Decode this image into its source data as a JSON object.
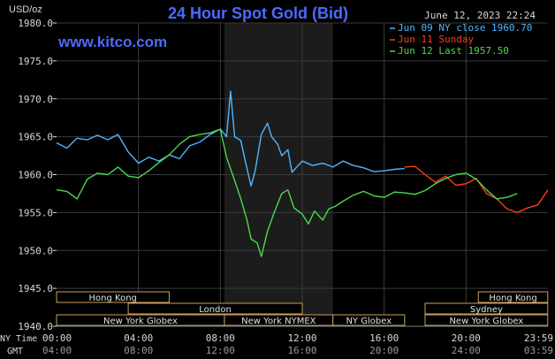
{
  "title": "24 Hour Spot Gold (Bid)",
  "unit_label": "USD/oz",
  "timestamp": "June 12, 2023 22:24",
  "watermark": "www.kitco.com",
  "colors": {
    "background": "#000000",
    "grid": "#3a3a3a",
    "title": "#4b6bff",
    "axis_text": "#d8d8d8",
    "session_band": "#1c1c1c",
    "session_box_border": "#c8a060",
    "session_text": "#e0e0e0"
  },
  "legend": [
    {
      "label": "Jun 09 NY close 1960.70",
      "color": "#4fb6ff"
    },
    {
      "label": "Jun 11 Sunday",
      "color": "#ff3a1a"
    },
    {
      "label": "Jun 12 Last 1957.50",
      "color": "#4cd94c"
    }
  ],
  "x_axis": {
    "row1_label": "NY Time",
    "row2_label": "GMT",
    "ny_ticks": [
      "00:00",
      "04:00",
      "08:00",
      "12:00",
      "16:00",
      "20:00",
      "23:59"
    ],
    "gmt_ticks": [
      "04:00",
      "08:00",
      "12:00",
      "16:00",
      "20:00",
      "24:00",
      "03:59"
    ]
  },
  "sessions": [
    {
      "label": "Hong Kong",
      "start": 0.0,
      "end": 5.5,
      "row": 0
    },
    {
      "label": "Hong Kong",
      "start": 20.6,
      "end": 23.99,
      "row": 0
    },
    {
      "label": "London",
      "start": 3.5,
      "end": 12.0,
      "row": 1
    },
    {
      "label": "Sydney",
      "start": 18.0,
      "end": 23.99,
      "row": 1
    },
    {
      "label": "New York Globex",
      "start": 0.0,
      "end": 8.2,
      "row": 2
    },
    {
      "label": "New York NYMEX",
      "start": 8.2,
      "end": 13.5,
      "row": 2
    },
    {
      "label": "NY Globex",
      "start": 13.5,
      "end": 17.0,
      "row": 2
    },
    {
      "label": "New York Globex",
      "start": 18.0,
      "end": 23.99,
      "row": 2
    }
  ],
  "chart_data": {
    "type": "line",
    "xlabel": "NY Time",
    "ylabel": "USD/oz",
    "xlim": [
      0,
      24
    ],
    "ylim": [
      1940,
      1980
    ],
    "yticks": [
      1940.0,
      1945.0,
      1950.0,
      1955.0,
      1960.0,
      1965.0,
      1970.0,
      1975.0,
      1980.0
    ],
    "shaded_range": [
      8.2,
      13.5
    ],
    "grid": true,
    "legend_position": "top-right",
    "series": [
      {
        "name": "Jun 09 NY close 1960.70",
        "color": "#4fb6ff",
        "x": [
          0,
          0.5,
          1,
          1.5,
          2,
          2.5,
          3,
          3.5,
          4,
          4.5,
          5,
          5.5,
          6,
          6.5,
          7,
          7.5,
          8,
          8.3,
          8.5,
          8.7,
          9,
          9.2,
          9.5,
          9.7,
          10,
          10.3,
          10.5,
          10.8,
          11,
          11.3,
          11.5,
          11.8,
          12,
          12.5,
          13,
          13.5,
          14,
          14.5,
          15,
          15.5,
          16,
          16.5,
          17
        ],
        "y": [
          1964.2,
          1963.5,
          1964.8,
          1964.6,
          1965.2,
          1964.6,
          1965.3,
          1963.0,
          1961.5,
          1962.3,
          1961.8,
          1962.6,
          1962.1,
          1963.8,
          1964.3,
          1965.3,
          1966.0,
          1965.0,
          1971.0,
          1965.0,
          1964.5,
          1962.0,
          1958.5,
          1960.5,
          1965.3,
          1966.8,
          1965.0,
          1964.0,
          1962.5,
          1963.3,
          1960.3,
          1961.2,
          1961.8,
          1961.2,
          1961.5,
          1961.0,
          1961.8,
          1961.2,
          1960.9,
          1960.4,
          1960.5,
          1960.7,
          1960.8
        ]
      },
      {
        "name": "Jun 11 Sunday",
        "color": "#ff3a1a",
        "x": [
          17,
          17.5,
          18,
          18.5,
          19,
          19.5,
          20,
          20.5,
          21,
          21.5,
          22,
          22.5,
          23,
          23.5,
          24
        ],
        "y": [
          1961.0,
          1961.1,
          1960.0,
          1959.0,
          1959.8,
          1958.6,
          1958.8,
          1959.5,
          1957.5,
          1956.8,
          1955.5,
          1955.0,
          1955.6,
          1956.0,
          1958.0
        ]
      },
      {
        "name": "Jun 12 Last 1957.50",
        "color": "#4cd94c",
        "x": [
          0,
          0.5,
          1,
          1.5,
          2,
          2.5,
          3,
          3.5,
          4,
          4.5,
          5,
          5.5,
          6,
          6.5,
          7,
          7.5,
          8,
          8.3,
          8.6,
          9,
          9.3,
          9.5,
          9.8,
          10,
          10.3,
          10.6,
          11,
          11.3,
          11.6,
          12,
          12.3,
          12.6,
          13,
          13.3,
          13.6,
          14,
          14.5,
          15,
          15.5,
          16,
          16.5,
          17,
          17.5,
          18,
          18.5,
          19,
          19.5,
          20,
          20.5,
          21,
          21.5,
          22,
          22.5
        ],
        "y": [
          1958.0,
          1957.8,
          1956.8,
          1959.4,
          1960.2,
          1960.0,
          1961.0,
          1959.8,
          1959.6,
          1960.5,
          1961.6,
          1962.6,
          1964.0,
          1965.0,
          1965.3,
          1965.5,
          1966.0,
          1962.3,
          1960.0,
          1956.8,
          1954.0,
          1951.5,
          1951.0,
          1949.2,
          1952.5,
          1954.8,
          1957.5,
          1958.0,
          1955.6,
          1954.8,
          1953.5,
          1955.2,
          1954.0,
          1955.5,
          1955.8,
          1956.5,
          1957.3,
          1957.8,
          1957.2,
          1957.0,
          1957.7,
          1957.6,
          1957.4,
          1957.9,
          1958.8,
          1959.5,
          1960.0,
          1960.2,
          1959.4,
          1958.0,
          1956.8,
          1957.0,
          1957.5
        ]
      }
    ]
  }
}
